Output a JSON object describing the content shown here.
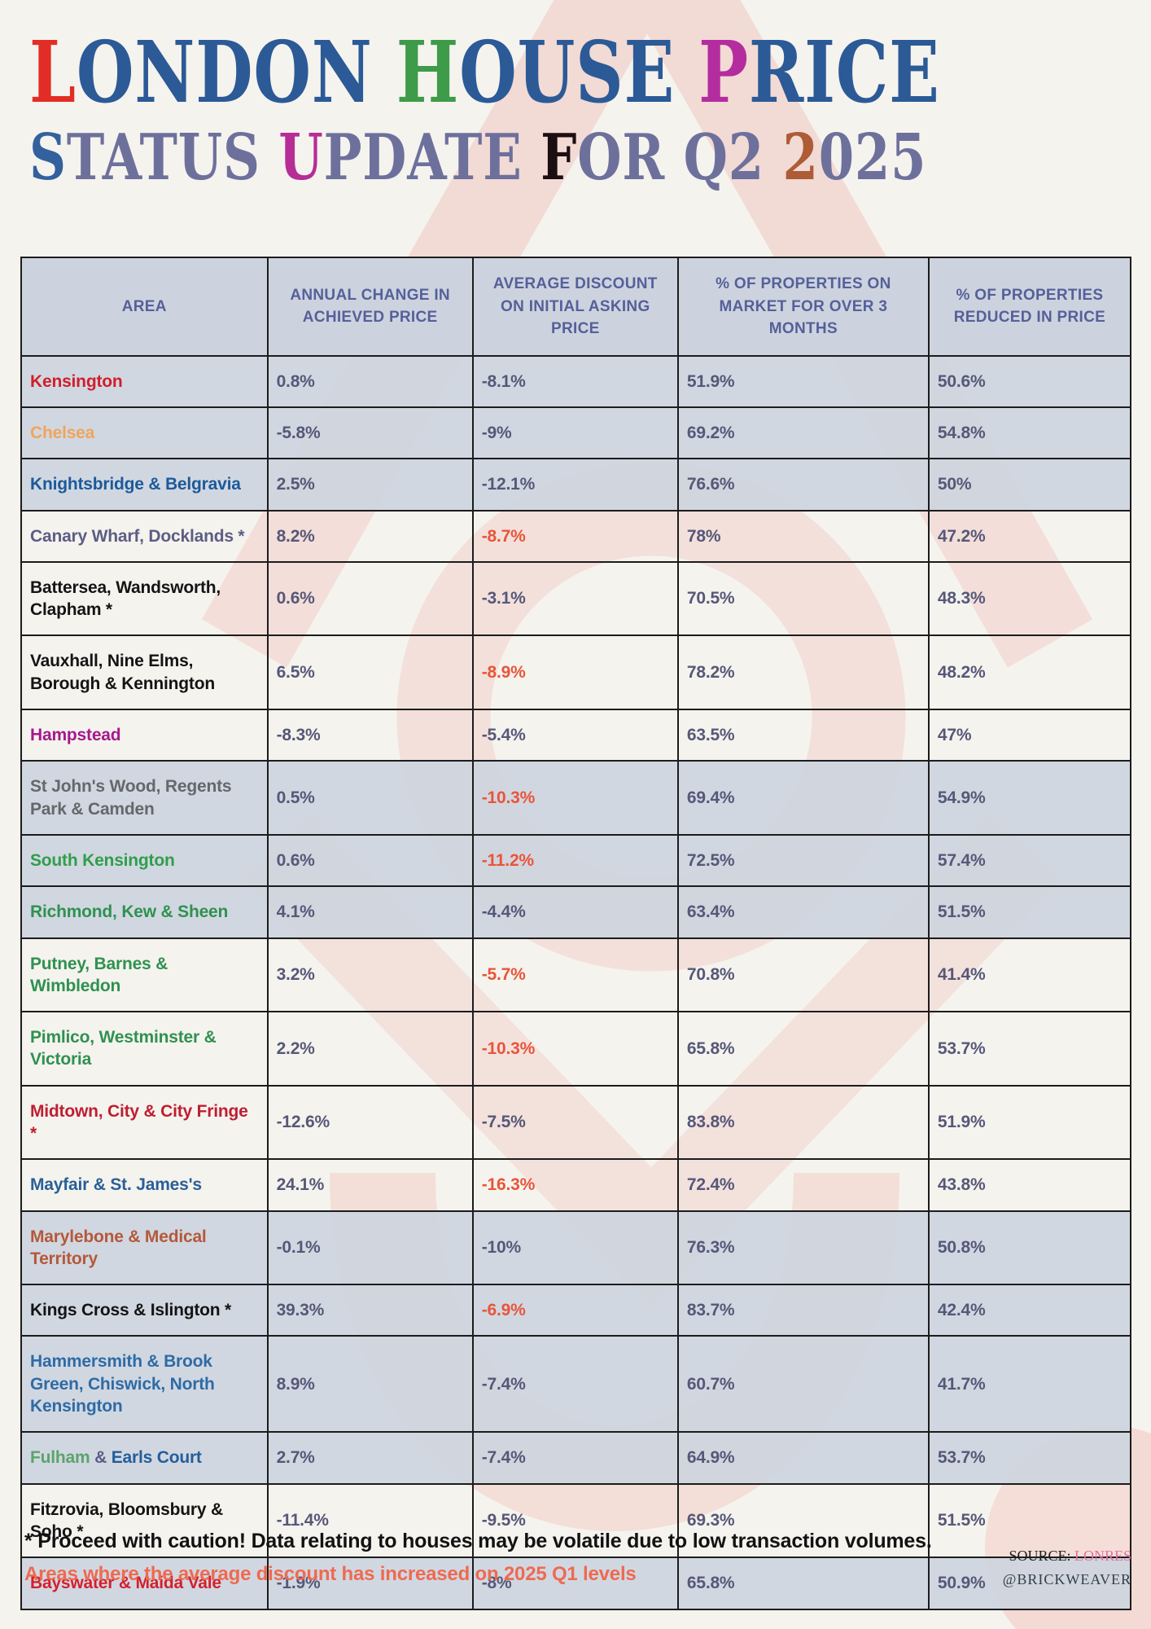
{
  "title": {
    "line1_segments": [
      {
        "text": "L",
        "color": "#e22d26"
      },
      {
        "text": "ONDON ",
        "color": "#2c5a97"
      },
      {
        "text": "H",
        "color": "#3d9b49"
      },
      {
        "text": "OUSE ",
        "color": "#2c5a97"
      },
      {
        "text": "P",
        "color": "#b42d9e"
      },
      {
        "text": "RICE",
        "color": "#2c5a97"
      }
    ],
    "line2_segments": [
      {
        "text": "S",
        "color": "#33619e"
      },
      {
        "text": "TATUS ",
        "color": "#6e709c"
      },
      {
        "text": "U",
        "color": "#b62d97"
      },
      {
        "text": "PDATE ",
        "color": "#6e709c"
      },
      {
        "text": "F",
        "color": "#1c0f12"
      },
      {
        "text": "OR Q2 ",
        "color": "#6e709c"
      },
      {
        "text": "2",
        "color": "#ad5c35"
      },
      {
        "text": "025",
        "color": "#6e709c"
      }
    ]
  },
  "table": {
    "headers": [
      "AREA",
      "ANNUAL CHANGE IN ACHIEVED PRICE",
      "AVERAGE DISCOUNT ON INITIAL ASKING PRICE",
      "% OF PROPERTIES ON MARKET FOR OVER 3 MONTHS",
      "% OF PROPERTIES REDUCED IN PRICE"
    ],
    "rows": [
      {
        "area_parts": [
          {
            "text": "Kensington",
            "color": "#cf1f2b"
          }
        ],
        "annual": "0.8%",
        "discount": "-8.1%",
        "discount_highlight": false,
        "over_3_months": "51.9%",
        "reduced": "50.6%",
        "shaded": true
      },
      {
        "area_parts": [
          {
            "text": "Chelsea",
            "color": "#efa55c"
          }
        ],
        "annual": "-5.8%",
        "discount": "-9%",
        "discount_highlight": false,
        "over_3_months": "69.2%",
        "reduced": "54.8%",
        "shaded": true
      },
      {
        "area_parts": [
          {
            "text": "Knightsbridge & Belgravia",
            "color": "#1d5a99"
          }
        ],
        "annual": "2.5%",
        "discount": "-12.1%",
        "discount_highlight": false,
        "over_3_months": "76.6%",
        "reduced": "50%",
        "shaded": true
      },
      {
        "area_parts": [
          {
            "text": "Canary Wharf, Docklands *",
            "color": "#5c5d85"
          }
        ],
        "annual": "8.2%",
        "discount": "-8.7%",
        "discount_highlight": true,
        "over_3_months": "78%",
        "reduced": "47.2%",
        "shaded": false
      },
      {
        "area_parts": [
          {
            "text": "Battersea, Wandsworth, Clapham *",
            "color": "#141414"
          }
        ],
        "annual": "0.6%",
        "discount": "-3.1%",
        "discount_highlight": false,
        "over_3_months": "70.5%",
        "reduced": "48.3%",
        "shaded": false
      },
      {
        "area_parts": [
          {
            "text": "Vauxhall, Nine Elms, Borough & Kennington",
            "color": "#141414"
          }
        ],
        "annual": "6.5%",
        "discount": "-8.9%",
        "discount_highlight": true,
        "over_3_months": "78.2%",
        "reduced": "48.2%",
        "shaded": false
      },
      {
        "area_parts": [
          {
            "text": "Hampstead",
            "color": "#a5188c"
          }
        ],
        "annual": "-8.3%",
        "discount": "-5.4%",
        "discount_highlight": false,
        "over_3_months": "63.5%",
        "reduced": "47%",
        "shaded": false
      },
      {
        "area_parts": [
          {
            "text": "St John's Wood, Regents Park & Camden",
            "color": "#64686b"
          }
        ],
        "annual": "0.5%",
        "discount": "-10.3%",
        "discount_highlight": true,
        "over_3_months": "69.4%",
        "reduced": "54.9%",
        "shaded": true
      },
      {
        "area_parts": [
          {
            "text": "South Kensington",
            "color": "#2f9e4b"
          }
        ],
        "annual": "0.6%",
        "discount": "-11.2%",
        "discount_highlight": true,
        "over_3_months": "72.5%",
        "reduced": "57.4%",
        "shaded": true
      },
      {
        "area_parts": [
          {
            "text": "Richmond, Kew & Sheen",
            "color": "#2f9150"
          }
        ],
        "annual": "4.1%",
        "discount": "-4.4%",
        "discount_highlight": false,
        "over_3_months": "63.4%",
        "reduced": "51.5%",
        "shaded": true
      },
      {
        "area_parts": [
          {
            "text": "Putney, Barnes & Wimbledon",
            "color": "#2f9150"
          }
        ],
        "annual": "3.2%",
        "discount": "-5.7%",
        "discount_highlight": true,
        "over_3_months": "70.8%",
        "reduced": "41.4%",
        "shaded": false
      },
      {
        "area_parts": [
          {
            "text": "Pimlico, Westminster & Victoria",
            "color": "#2f9150"
          }
        ],
        "annual": "2.2%",
        "discount": "-10.3%",
        "discount_highlight": true,
        "over_3_months": "65.8%",
        "reduced": "53.7%",
        "shaded": false
      },
      {
        "area_parts": [
          {
            "text": "Midtown, City & City Fringe *",
            "color": "#bf1e31"
          }
        ],
        "annual": "-12.6%",
        "discount": "-7.5%",
        "discount_highlight": false,
        "over_3_months": "83.8%",
        "reduced": "51.9%",
        "shaded": false
      },
      {
        "area_parts": [
          {
            "text": "Mayfair & St. James's",
            "color": "#2a5f96"
          }
        ],
        "annual": "24.1%",
        "discount": "-16.3%",
        "discount_highlight": true,
        "over_3_months": "72.4%",
        "reduced": "43.8%",
        "shaded": false
      },
      {
        "area_parts": [
          {
            "text": "Marylebone & Medical Territory",
            "color": "#b4593a"
          }
        ],
        "annual": "-0.1%",
        "discount": "-10%",
        "discount_highlight": false,
        "over_3_months": "76.3%",
        "reduced": "50.8%",
        "shaded": true
      },
      {
        "area_parts": [
          {
            "text": "Kings Cross & Islington *",
            "color": "#141414"
          }
        ],
        "annual": "39.3%",
        "discount": "-6.9%",
        "discount_highlight": true,
        "over_3_months": "83.7%",
        "reduced": "42.4%",
        "shaded": true
      },
      {
        "area_parts": [
          {
            "text": "Hammersmith & Brook Green, Chiswick, North Kensington",
            "color": "#2e6ba5"
          }
        ],
        "annual": "8.9%",
        "discount": "-7.4%",
        "discount_highlight": false,
        "over_3_months": "60.7%",
        "reduced": "41.7%",
        "shaded": true
      },
      {
        "area_parts": [
          {
            "text": "Fulham",
            "color": "#5ba36b"
          },
          {
            "text": " & ",
            "color": "#5c5d85"
          },
          {
            "text": "Earls Court",
            "color": "#235e99"
          }
        ],
        "annual": "2.7%",
        "discount": "-7.4%",
        "discount_highlight": false,
        "over_3_months": "64.9%",
        "reduced": "53.7%",
        "shaded": true
      },
      {
        "area_parts": [
          {
            "text": "Fitzrovia, Bloomsbury & Soho *",
            "color": "#141414"
          }
        ],
        "annual": "-11.4%",
        "discount": "-9.5%",
        "discount_highlight": false,
        "over_3_months": "69.3%",
        "reduced": "51.5%",
        "shaded": false
      },
      {
        "area_parts": [
          {
            "text": "Bayswater & Maida Vale",
            "color": "#d41f2c"
          }
        ],
        "annual": "-1.9%",
        "discount": "-8%",
        "discount_highlight": false,
        "over_3_months": "65.8%",
        "reduced": "50.9%",
        "shaded": true
      }
    ]
  },
  "footnotes": {
    "caution": "* Proceed with caution! Data relating to houses may be volatile due to low transaction volumes.",
    "highlight_note": "Areas where the average discount has increased on 2025 Q1 levels"
  },
  "credits": {
    "source_label": "SOURCE:",
    "source_name": "LONRES",
    "handle": "@BRICKWEAVER"
  },
  "colors": {
    "paper": "#f5f3ee",
    "header_bg": "#cdd3de",
    "header_text": "#55609a",
    "value_text": "#565878",
    "highlight_value": "#e8553a",
    "grid_line": "#1c1c1c",
    "row_shade": "#cdd4df",
    "decorative_pink": "#eeb4ae",
    "footnote_highlight": "#ee6a50",
    "source_name_pink": "#e0709f"
  },
  "chart_data": {
    "type": "table",
    "title": "London House Price Status Update for Q2 2025",
    "columns": [
      "Area",
      "Annual change in achieved price",
      "Average discount on initial asking price",
      "% of properties on market for over 3 months",
      "% of properties reduced in price"
    ],
    "areas": [
      "Kensington",
      "Chelsea",
      "Knightsbridge & Belgravia",
      "Canary Wharf, Docklands *",
      "Battersea, Wandsworth, Clapham *",
      "Vauxhall, Nine Elms, Borough & Kennington",
      "Hampstead",
      "St John's Wood, Regents Park & Camden",
      "South Kensington",
      "Richmond, Kew & Sheen",
      "Putney, Barnes & Wimbledon",
      "Pimlico, Westminster & Victoria",
      "Midtown, City & City Fringe *",
      "Mayfair & St. James's",
      "Marylebone & Medical Territory",
      "Kings Cross & Islington *",
      "Hammersmith & Brook Green, Chiswick, North Kensington",
      "Fulham & Earls Court",
      "Fitzrovia, Bloomsbury & Soho *",
      "Bayswater & Maida Vale"
    ],
    "series": [
      {
        "name": "Annual change in achieved price (%)",
        "values": [
          0.8,
          -5.8,
          2.5,
          8.2,
          0.6,
          6.5,
          -8.3,
          0.5,
          0.6,
          4.1,
          3.2,
          2.2,
          -12.6,
          24.1,
          -0.1,
          39.3,
          8.9,
          2.7,
          -11.4,
          -1.9
        ]
      },
      {
        "name": "Average discount on initial asking price (%)",
        "values": [
          -8.1,
          -9,
          -12.1,
          -8.7,
          -3.1,
          -8.9,
          -5.4,
          -10.3,
          -11.2,
          -4.4,
          -5.7,
          -10.3,
          -7.5,
          -16.3,
          -10,
          -6.9,
          -7.4,
          -7.4,
          -9.5,
          -8
        ]
      },
      {
        "name": "% of properties on market for over 3 months",
        "values": [
          51.9,
          69.2,
          76.6,
          78,
          70.5,
          78.2,
          63.5,
          69.4,
          72.5,
          63.4,
          70.8,
          65.8,
          83.8,
          72.4,
          76.3,
          83.7,
          60.7,
          64.9,
          69.3,
          65.8
        ]
      },
      {
        "name": "% of properties reduced in price",
        "values": [
          50.6,
          54.8,
          50,
          47.2,
          48.3,
          48.2,
          47,
          54.9,
          57.4,
          51.5,
          41.4,
          53.7,
          51.9,
          43.8,
          50.8,
          42.4,
          41.7,
          53.7,
          51.5,
          50.9
        ]
      }
    ],
    "highlighted_discount_areas": [
      "Canary Wharf, Docklands *",
      "Vauxhall, Nine Elms, Borough & Kennington",
      "St John's Wood, Regents Park & Camden",
      "South Kensington",
      "Putney, Barnes & Wimbledon",
      "Pimlico, Westminster & Victoria",
      "Mayfair & St. James's",
      "Kings Cross & Islington *"
    ],
    "legend_note": "Orange discount values = areas where the average discount has increased on 2025 Q1 levels"
  }
}
